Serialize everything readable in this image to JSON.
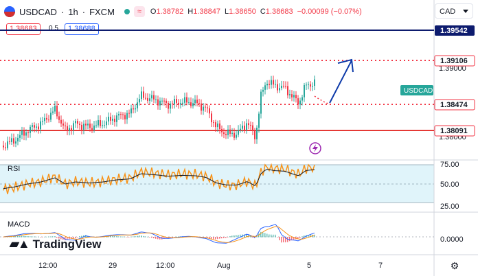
{
  "header": {
    "symbol": "USDCAD",
    "interval": "1h",
    "exchange": "FXCM",
    "title_sep": "·",
    "o_label": "O",
    "o_value": "1.38782",
    "h_label": "H",
    "h_value": "1.38847",
    "l_label": "L",
    "l_value": "1.38650",
    "c_label": "C",
    "c_value": "1.38683",
    "change": "−0.00099 (−0.07%)",
    "status_icon": "market-open-dot-icon",
    "wave_icon": "wave-icon"
  },
  "trade": {
    "sell_price": "1.38683",
    "spread": "0.5",
    "buy_price": "1.38688"
  },
  "currency_select": {
    "value": "CAD"
  },
  "price_axis": {
    "ticks": [
      "1.39000",
      "1.38000"
    ],
    "labels": [
      {
        "text": "1.39542",
        "color": "#0d1b6e"
      },
      {
        "text": "1.39106",
        "color": "#f23645"
      },
      {
        "text": "1.38474",
        "color": "#f23645"
      },
      {
        "text": "1.38091",
        "color": "#f23645"
      }
    ],
    "symbol_tag": "USDCAD"
  },
  "rsi": {
    "label": "RSI",
    "ticks": [
      "75.00",
      "50.00",
      "25.00"
    ],
    "band_color": "#e0f4fa",
    "line_color": "#f7931a",
    "ma_color": "#131722"
  },
  "macd": {
    "label": "MACD",
    "tick": "0.0000",
    "macd_color": "#2962ff",
    "signal_color": "#f7931a"
  },
  "time_axis": [
    "12:00",
    "29",
    "12:00",
    "Aug",
    "5",
    "7"
  ],
  "branding": {
    "name": "TradingView"
  },
  "colors": {
    "bull": "#26a69a",
    "bear": "#f23645",
    "blue_line": "#0d1b6e",
    "red_line": "#e53935"
  }
}
